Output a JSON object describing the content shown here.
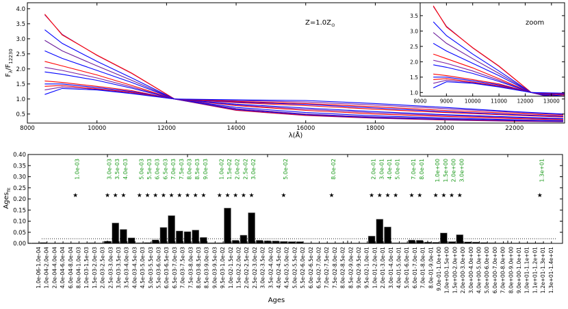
{
  "chart_data": [
    {
      "type": "line",
      "panel": "top",
      "xlabel": "λ(Å)",
      "ylabel_parts": {
        "main": "F",
        "sub": "λ",
        "main2": "/F",
        "sub2": "12230"
      },
      "annotation": {
        "main": "Z=1.0Z",
        "sub": "⊙"
      },
      "xlim": [
        8000,
        23440
      ],
      "ylim": [
        0.2,
        4.2
      ],
      "xticks": [
        8000,
        10000,
        12000,
        14000,
        16000,
        18000,
        20000,
        22000
      ],
      "yticks": [
        0.5,
        1.0,
        1.5,
        2.0,
        2.5,
        3.0,
        3.5,
        4.0
      ],
      "grid": false,
      "x": [
        8500,
        9000,
        10000,
        11000,
        12230,
        14000,
        16000,
        18000,
        20000,
        22000,
        23400
      ],
      "series": [
        {
          "color": "#7b1fa2",
          "values": [
            3.8,
            3.15,
            2.45,
            1.85,
            1.0,
            0.62,
            0.45,
            0.36,
            0.3,
            0.26,
            0.24
          ]
        },
        {
          "color": "#ff0000",
          "values": [
            3.82,
            3.13,
            2.46,
            1.86,
            1.0,
            0.63,
            0.46,
            0.37,
            0.31,
            0.27,
            0.245
          ]
        },
        {
          "color": "#0000ff",
          "values": [
            3.3,
            2.85,
            2.25,
            1.7,
            1.0,
            0.65,
            0.48,
            0.38,
            0.32,
            0.28,
            0.25
          ]
        },
        {
          "color": "#6a1b9a",
          "values": [
            2.95,
            2.6,
            2.1,
            1.62,
            1.0,
            0.68,
            0.5,
            0.4,
            0.34,
            0.29,
            0.26
          ]
        },
        {
          "color": "#0000ff",
          "values": [
            2.6,
            2.35,
            1.95,
            1.55,
            1.0,
            0.72,
            0.55,
            0.44,
            0.37,
            0.31,
            0.28
          ]
        },
        {
          "color": "#ff0000",
          "values": [
            2.25,
            2.1,
            1.8,
            1.45,
            1.0,
            0.78,
            0.62,
            0.5,
            0.42,
            0.35,
            0.31
          ]
        },
        {
          "color": "#7b1fa2",
          "values": [
            2.05,
            1.95,
            1.7,
            1.4,
            1.0,
            0.8,
            0.66,
            0.54,
            0.45,
            0.38,
            0.33
          ]
        },
        {
          "color": "#0000ff",
          "values": [
            1.9,
            1.82,
            1.62,
            1.36,
            1.0,
            0.83,
            0.7,
            0.58,
            0.48,
            0.4,
            0.35
          ]
        },
        {
          "color": "#ff0000",
          "values": [
            1.6,
            1.55,
            1.42,
            1.28,
            1.0,
            0.88,
            0.78,
            0.66,
            0.55,
            0.46,
            0.4
          ]
        },
        {
          "color": "#0000ff",
          "values": [
            1.5,
            1.5,
            1.38,
            1.25,
            1.0,
            0.9,
            0.82,
            0.7,
            0.58,
            0.48,
            0.42
          ]
        },
        {
          "color": "#ff0000",
          "values": [
            1.42,
            1.45,
            1.34,
            1.22,
            1.0,
            0.92,
            0.85,
            0.74,
            0.62,
            0.52,
            0.45
          ]
        },
        {
          "color": "#7b1fa2",
          "values": [
            1.3,
            1.4,
            1.32,
            1.2,
            1.0,
            0.95,
            0.9,
            0.8,
            0.68,
            0.56,
            0.48
          ]
        },
        {
          "color": "#0000ff",
          "values": [
            1.15,
            1.35,
            1.3,
            1.18,
            1.0,
            0.97,
            0.95,
            0.85,
            0.72,
            0.58,
            0.5
          ]
        }
      ]
    },
    {
      "type": "line",
      "panel": "inset",
      "title": "zoom",
      "xlim": [
        8000,
        13500
      ],
      "ylim": [
        0.88,
        3.92
      ],
      "xticks": [
        8000,
        9000,
        10000,
        11000,
        12000,
        13000
      ],
      "yticks": [
        1.0,
        1.5,
        2.0,
        2.5,
        3.0,
        3.5
      ],
      "series_ref": "same series as top panel"
    },
    {
      "type": "bar",
      "panel": "bottom",
      "xlabel": "Ages",
      "ylabel": {
        "main": "Ages",
        "sub": "fit"
      },
      "ylim": [
        0.0,
        0.4
      ],
      "yticks": [
        "0.00",
        "0.05",
        "0.10",
        "0.15",
        "0.20",
        "0.25",
        "0.30",
        "0.35",
        "0.40"
      ],
      "threshold_line": 0.021,
      "star_level": 0.22,
      "bar_color": "#000000",
      "label_color": "#1a9a1a",
      "categories": [
        "1.0e-06-1.0e-04",
        "1.0e-04-2.0e-04",
        "2.0e-04-4.0e-04",
        "4.0e-04-6.0e-04",
        "6.0e-04-8.0e-04",
        "8.0e-04-1.0e-03",
        "1.0e-03-1.5e-03",
        "1.5e-03-2.0e-03",
        "2.0e-03-2.5e-03",
        "2.5e-03-3.0e-03",
        "3.0e-03-3.5e-03",
        "3.5e-03-4.0e-03",
        "4.0e-03-4.5e-03",
        "4.5e-03-5.0e-03",
        "5.0e-03-5.5e-03",
        "5.5e-03-6.0e-03",
        "6.0e-03-6.5e-03",
        "6.5e-03-7.0e-03",
        "7.0e-03-7.5e-03",
        "7.5e-03-8.0e-03",
        "8.0e-03-8.5e-03",
        "8.5e-03-9.0e-03",
        "9.0e-03-9.5e-03",
        "9.5e-03-1.0e-02",
        "1.0e-02-1.5e-02",
        "1.5e-02-2.0e-02",
        "2.0e-02-2.5e-02",
        "2.5e-02-3.0e-02",
        "3.0e-02-3.5e-02",
        "3.5e-02-4.0e-02",
        "4.0e-02-4.5e-02",
        "4.5e-02-5.0e-02",
        "5.0e-02-5.5e-02",
        "5.5e-02-6.0e-02",
        "6.0e-02-6.5e-02",
        "6.5e-02-7.0e-02",
        "7.0e-02-7.5e-02",
        "7.5e-02-8.0e-02",
        "8.0e-02-8.5e-02",
        "8.5e-02-9.0e-02",
        "9.0e-02-9.5e-02",
        "9.5e-02-1.0e-01",
        "1.0e-01-2.0e-01",
        "2.0e-01-3.0e-01",
        "3.0e-01-4.0e-01",
        "4.0e-01-5.0e-01",
        "5.0e-01-6.0e-01",
        "6.0e-01-7.0e-01",
        "7.0e-01-8.0e-01",
        "8.0e-01-9.0e-01",
        "9.0e-01-1.0e+00",
        "1.0e+00-1.5e+00",
        "1.5e+00-2.0e+00",
        "2.0e+00-3.0e+00",
        "3.0e+00-4.0e+00",
        "4.0e+00-5.0e+00",
        "5.0e+00-6.0e+00",
        "6.0e+00-7.0e+00",
        "7.0e+00-8.0e+00",
        "8.0e+00-9.0e+00",
        "9.0e+00-1.0e+01",
        "1.0e+01-1.1e+01",
        "1.1e+01-1.2e+01",
        "1.2e+01-1.3e+01",
        "1.3e+01-1.4e+01"
      ],
      "values": [
        0.002,
        0.002,
        0.004,
        0.002,
        0.002,
        0.002,
        0.002,
        0.002,
        0.003,
        0.002,
        0.01,
        0.092,
        0.063,
        0.025,
        0.003,
        0.004,
        0.016,
        0.072,
        0.125,
        0.056,
        0.053,
        0.06,
        0.027,
        0.003,
        0.003,
        0.159,
        0.014,
        0.037,
        0.138,
        0.014,
        0.012,
        0.011,
        0.009,
        0.008,
        0.008,
        0.002,
        0.002,
        0.002,
        0.002,
        0.002,
        0.002,
        0.002,
        0.002,
        0.033,
        0.109,
        0.074,
        0.003,
        0.003,
        0.015,
        0.014,
        0.006,
        0.005,
        0.047,
        0.008,
        0.039,
        0.007,
        0.006,
        0.004,
        0.003,
        0.002,
        0.002,
        0.002,
        0.002,
        0.002,
        0.002
      ],
      "marked": [
        {
          "index": 6,
          "label": "1.0e-03"
        },
        {
          "index": 10,
          "label": "3.0e-03"
        },
        {
          "index": 11,
          "label": "3.5e-03"
        },
        {
          "index": 12,
          "label": "4.0e-03"
        },
        {
          "index": 14,
          "label": "5.0e-03"
        },
        {
          "index": 15,
          "label": "5.5e-03"
        },
        {
          "index": 16,
          "label": "6.0e-03"
        },
        {
          "index": 17,
          "label": "6.5e-03"
        },
        {
          "index": 18,
          "label": "7.0e-03"
        },
        {
          "index": 19,
          "label": "7.5e-03"
        },
        {
          "index": 20,
          "label": "8.0e-03"
        },
        {
          "index": 21,
          "label": "8.5e-03"
        },
        {
          "index": 22,
          "label": "9.0e-03"
        },
        {
          "index": 24,
          "label": "1.0e-02"
        },
        {
          "index": 25,
          "label": "1.5e-02"
        },
        {
          "index": 26,
          "label": "2.0e-02"
        },
        {
          "index": 27,
          "label": "2.5e-02"
        },
        {
          "index": 28,
          "label": "3.0e-02"
        },
        {
          "index": 32,
          "label": "5.0e-02"
        },
        {
          "index": 38,
          "label": "8.0e-02"
        },
        {
          "index": 43,
          "label": "2.0e-01"
        },
        {
          "index": 44,
          "label": "3.0e-01"
        },
        {
          "index": 45,
          "label": "4.0e-01"
        },
        {
          "index": 46,
          "label": "5.0e-01"
        },
        {
          "index": 48,
          "label": "7.0e-01"
        },
        {
          "index": 49,
          "label": "8.0e-01"
        },
        {
          "index": 51,
          "label": "1.0e+00"
        },
        {
          "index": 52,
          "label": "1.5e+00"
        },
        {
          "index": 53,
          "label": "2.0e+00"
        },
        {
          "index": 54,
          "label": "3.0e+00"
        },
        {
          "index": 64,
          "label": "1.3e+01"
        }
      ]
    }
  ]
}
